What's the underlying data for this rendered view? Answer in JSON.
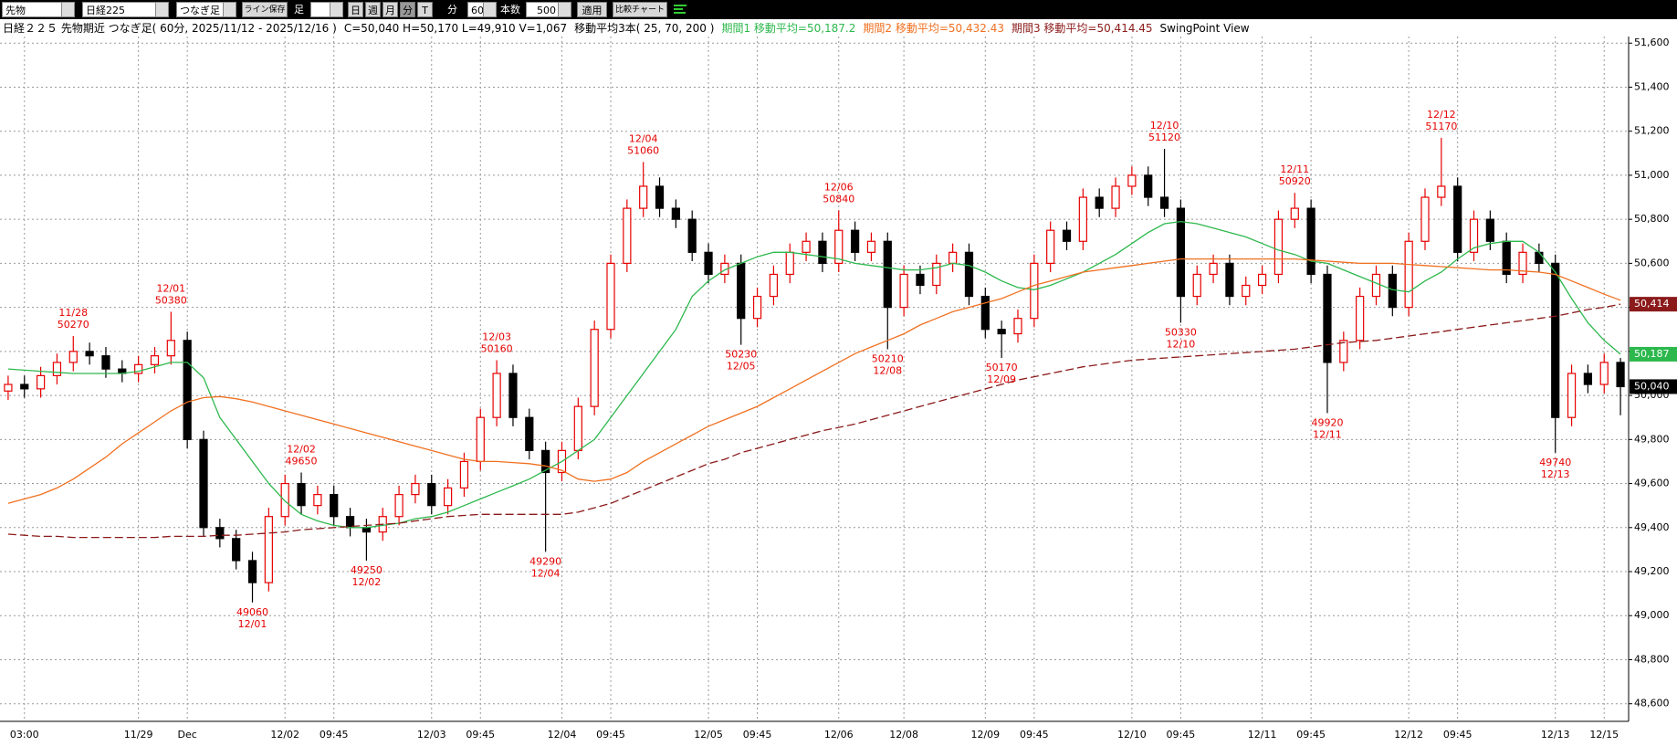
{
  "toolbar": {
    "market": "先物",
    "symbol": "日経225",
    "mode": "つなぎ足",
    "save": "ライン保存",
    "bar_label": "足",
    "periods": [
      "日",
      "週",
      "月",
      "分",
      "T"
    ],
    "unit_label": "分",
    "interval": "60",
    "count_label": "本数",
    "count": "500",
    "apply": "適用",
    "compare": "比較チャート"
  },
  "chart_data": {
    "type": "candlestick",
    "title": "日経２２５ 先物期近 つなぎ足( 60分, 2025/11/12 - 2025/12/16 )",
    "subtitle": "C=50,040 H=50,170 L=49,910 V=1,067",
    "ma_caption": "移動平均3本( 25, 70, 200 )",
    "view_label": "SwingPoint View",
    "grid": true,
    "ylim": [
      48520,
      51630
    ],
    "yticks": [
      {
        "value": 48600,
        "label": "48,600"
      },
      {
        "value": 48800,
        "label": "48,800"
      },
      {
        "value": 49000,
        "label": "49,000"
      },
      {
        "value": 49200,
        "label": "49,200"
      },
      {
        "value": 49400,
        "label": "49,400"
      },
      {
        "value": 49600,
        "label": "49,600"
      },
      {
        "value": 49800,
        "label": "49,800"
      },
      {
        "value": 50000,
        "label": "50,000"
      },
      {
        "value": 50200,
        "label": "50,200"
      },
      {
        "value": 50400,
        "label": "50,400"
      },
      {
        "value": 50600,
        "label": "50,600"
      },
      {
        "value": 50800,
        "label": "50,800"
      },
      {
        "value": 51000,
        "label": "51,000"
      },
      {
        "value": 51200,
        "label": "51,200"
      },
      {
        "value": 51400,
        "label": "51,400"
      },
      {
        "value": 51600,
        "label": "51,600"
      }
    ],
    "categories": [
      null,
      "03:00",
      null,
      null,
      null,
      null,
      null,
      null,
      "11/29",
      null,
      null,
      "Dec",
      null,
      null,
      null,
      null,
      null,
      "12/02",
      null,
      null,
      "09:45",
      null,
      null,
      null,
      null,
      null,
      "12/03",
      null,
      null,
      "09:45",
      null,
      null,
      null,
      null,
      "12/04",
      null,
      null,
      "09:45",
      null,
      null,
      null,
      null,
      null,
      "12/05",
      null,
      null,
      "09:45",
      null,
      null,
      null,
      null,
      "12/06",
      null,
      null,
      null,
      "12/08",
      null,
      null,
      null,
      null,
      "12/09",
      null,
      null,
      "09:45",
      null,
      null,
      null,
      null,
      null,
      "12/10",
      null,
      null,
      "09:45",
      null,
      null,
      null,
      null,
      "12/11",
      null,
      null,
      "09:45",
      null,
      null,
      null,
      null,
      null,
      "12/12",
      null,
      null,
      "09:45",
      null,
      null,
      null,
      null,
      null,
      "12/13",
      null,
      null,
      "12/15",
      null
    ],
    "ohlc": {
      "up_color": "#e60000",
      "down_color": "#000000",
      "last_label": "50,040",
      "open": [
        50020,
        50050,
        50030,
        50090,
        50150,
        50200,
        50180,
        50120,
        50100,
        50140,
        50180,
        50250,
        49800,
        49400,
        49350,
        49250,
        49150,
        49450,
        49600,
        49500,
        49550,
        49450,
        49400,
        49380,
        49450,
        49550,
        49600,
        49500,
        49580,
        49700,
        49900,
        50100,
        49900,
        49750,
        49650,
        49750,
        49950,
        50300,
        50600,
        50850,
        50950,
        50850,
        50800,
        50650,
        50550,
        50600,
        50350,
        50450,
        50550,
        50650,
        50700,
        50600,
        50750,
        50650,
        50700,
        50400,
        50550,
        50500,
        50600,
        50650,
        50450,
        50300,
        50280,
        50350,
        50600,
        50750,
        50700,
        50900,
        50850,
        50950,
        51000,
        50900,
        50850,
        50450,
        50550,
        50600,
        50450,
        50500,
        50550,
        50800,
        50850,
        50550,
        50150,
        50250,
        50450,
        50550,
        50400,
        50700,
        50900,
        50950,
        50650,
        50800,
        50700,
        50550,
        50650,
        50600,
        49900,
        50100,
        50050,
        50150
      ],
      "high": [
        50090,
        50090,
        50130,
        50190,
        50270,
        50240,
        50220,
        50160,
        50180,
        50220,
        50380,
        50290,
        49840,
        49440,
        49390,
        49290,
        49490,
        49640,
        49650,
        49590,
        49590,
        49490,
        49440,
        49490,
        49590,
        49640,
        49640,
        49620,
        49740,
        49940,
        50160,
        50140,
        49940,
        49790,
        49790,
        49990,
        50340,
        50640,
        50890,
        51060,
        50990,
        50890,
        50840,
        50690,
        50640,
        50640,
        50490,
        50590,
        50690,
        50740,
        50740,
        50840,
        50790,
        50740,
        50740,
        50590,
        50590,
        50640,
        50690,
        50690,
        50490,
        50340,
        50390,
        50640,
        50790,
        50790,
        50940,
        50940,
        50990,
        51040,
        51040,
        51120,
        50890,
        50590,
        50640,
        50640,
        50540,
        50590,
        50840,
        50920,
        50890,
        50590,
        50290,
        50490,
        50590,
        50590,
        50740,
        50940,
        51170,
        50990,
        50840,
        50840,
        50740,
        50690,
        50690,
        50640,
        50140,
        50140,
        50190,
        50170
      ],
      "low": [
        49980,
        49990,
        49990,
        50050,
        50110,
        50140,
        50080,
        50060,
        50060,
        50100,
        50140,
        49760,
        49360,
        49310,
        49210,
        49060,
        49110,
        49410,
        49460,
        49460,
        49410,
        49360,
        49250,
        49340,
        49410,
        49510,
        49460,
        49460,
        49540,
        49660,
        49860,
        49860,
        49710,
        49290,
        49610,
        49710,
        49910,
        50260,
        50560,
        50810,
        50810,
        50760,
        50610,
        50510,
        50510,
        50230,
        50310,
        50410,
        50510,
        50610,
        50560,
        50560,
        50610,
        50610,
        50210,
        50360,
        50460,
        50460,
        50560,
        50410,
        50260,
        50170,
        50240,
        50310,
        50560,
        50660,
        50660,
        50810,
        50810,
        50910,
        50860,
        50810,
        50330,
        50410,
        50510,
        50410,
        50410,
        50460,
        50510,
        50760,
        50510,
        49920,
        50110,
        50210,
        50410,
        50360,
        50360,
        50660,
        50860,
        50610,
        50610,
        50660,
        50510,
        50510,
        50560,
        49740,
        49860,
        50010,
        50010,
        49910
      ],
      "close": [
        50050,
        50030,
        50090,
        50150,
        50200,
        50180,
        50120,
        50100,
        50140,
        50180,
        50250,
        49800,
        49400,
        49350,
        49250,
        49150,
        49450,
        49600,
        49500,
        49550,
        49450,
        49400,
        49380,
        49450,
        49550,
        49600,
        49500,
        49580,
        49700,
        49900,
        50100,
        49900,
        49750,
        49650,
        49750,
        49950,
        50300,
        50600,
        50850,
        50950,
        50850,
        50800,
        50650,
        50550,
        50600,
        50350,
        50450,
        50550,
        50650,
        50700,
        50600,
        50750,
        50650,
        50700,
        50400,
        50550,
        50500,
        50600,
        50650,
        50450,
        50300,
        50280,
        50350,
        50600,
        50750,
        50700,
        50900,
        50850,
        50950,
        51000,
        50900,
        50850,
        50450,
        50550,
        50600,
        50450,
        50500,
        50550,
        50800,
        50850,
        50550,
        50150,
        50250,
        50450,
        50550,
        50400,
        50700,
        50900,
        50950,
        50650,
        50800,
        50700,
        50550,
        50650,
        50600,
        49900,
        50100,
        50050,
        50150,
        50040
      ]
    },
    "swing_color": "#e60000",
    "swing_high_dates": [
      null,
      null,
      null,
      null,
      "11/28",
      null,
      null,
      null,
      null,
      null,
      "12/01",
      null,
      null,
      null,
      null,
      null,
      null,
      null,
      "12/02",
      null,
      null,
      null,
      null,
      null,
      null,
      null,
      null,
      null,
      null,
      null,
      "12/03",
      null,
      null,
      null,
      null,
      null,
      null,
      null,
      null,
      "12/04",
      null,
      null,
      null,
      null,
      null,
      null,
      null,
      null,
      null,
      null,
      null,
      "12/06",
      null,
      null,
      null,
      null,
      null,
      null,
      null,
      null,
      null,
      null,
      null,
      null,
      null,
      null,
      null,
      null,
      null,
      null,
      null,
      "12/10",
      null,
      null,
      null,
      null,
      null,
      null,
      null,
      "12/11",
      null,
      null,
      null,
      null,
      null,
      null,
      null,
      null,
      "12/12",
      null,
      null,
      null,
      null,
      null,
      null,
      null,
      null,
      null,
      null,
      null
    ],
    "swing_low_dates": [
      null,
      null,
      null,
      null,
      null,
      null,
      null,
      null,
      null,
      null,
      null,
      null,
      null,
      null,
      null,
      "12/01",
      null,
      null,
      null,
      null,
      null,
      null,
      "12/02",
      null,
      null,
      null,
      null,
      null,
      null,
      null,
      null,
      null,
      null,
      "12/04",
      null,
      null,
      null,
      null,
      null,
      null,
      null,
      null,
      null,
      null,
      null,
      "12/05",
      null,
      null,
      null,
      null,
      null,
      null,
      null,
      null,
      "12/08",
      null,
      null,
      null,
      null,
      null,
      null,
      "12/09",
      null,
      null,
      null,
      null,
      null,
      null,
      null,
      null,
      null,
      null,
      "12/10",
      null,
      null,
      null,
      null,
      null,
      null,
      null,
      null,
      "12/11",
      null,
      null,
      null,
      null,
      null,
      null,
      null,
      null,
      null,
      null,
      null,
      null,
      null,
      "12/13",
      null,
      null,
      null,
      null
    ],
    "moving_averages": [
      {
        "name": "期間1 移動平均=50,187.2",
        "color": "#2db84d",
        "style": "solid",
        "last_label": "50,187",
        "values": [
          50120,
          50115,
          50110,
          50105,
          50100,
          50100,
          50100,
          50100,
          50110,
          50130,
          50150,
          50150,
          50080,
          49900,
          49800,
          49700,
          49600,
          49520,
          49460,
          49430,
          49410,
          49400,
          49400,
          49410,
          49420,
          49440,
          49450,
          49470,
          49500,
          49530,
          49560,
          49590,
          49620,
          49660,
          49700,
          49750,
          49800,
          49900,
          50000,
          50100,
          50200,
          50300,
          50450,
          50520,
          50570,
          50600,
          50630,
          50650,
          50650,
          50640,
          50630,
          50620,
          50600,
          50590,
          50580,
          50570,
          50570,
          50580,
          50600,
          50590,
          50560,
          50520,
          50490,
          50480,
          50500,
          50530,
          50560,
          50600,
          50640,
          50690,
          50740,
          50780,
          50790,
          50780,
          50760,
          50740,
          50720,
          50690,
          50660,
          50640,
          50610,
          50600,
          50570,
          50540,
          50510,
          50480,
          50470,
          50520,
          50560,
          50620,
          50670,
          50690,
          50700,
          50700,
          50650,
          50560,
          50440,
          50330,
          50250,
          50187.2
        ]
      },
      {
        "name": "期間2 移動平均=50,432.43",
        "color": "#f07020",
        "style": "solid",
        "values": [
          49510,
          49530,
          49550,
          49580,
          49620,
          49670,
          49720,
          49780,
          49830,
          49880,
          49930,
          49970,
          49990,
          49995,
          49985,
          49970,
          49950,
          49930,
          49910,
          49890,
          49870,
          49850,
          49830,
          49810,
          49790,
          49770,
          49750,
          49730,
          49710,
          49700,
          49700,
          49695,
          49690,
          49680,
          49660,
          49620,
          49610,
          49620,
          49650,
          49700,
          49740,
          49780,
          49820,
          49860,
          49890,
          49920,
          49950,
          49990,
          50030,
          50070,
          50110,
          50150,
          50190,
          50220,
          50250,
          50280,
          50320,
          50350,
          50380,
          50400,
          50420,
          50440,
          50470,
          50500,
          50520,
          50540,
          50560,
          50570,
          50580,
          50590,
          50600,
          50610,
          50620,
          50620,
          50620,
          50620,
          50620,
          50620,
          50620,
          50620,
          50615,
          50610,
          50605,
          50600,
          50600,
          50600,
          50595,
          50590,
          50585,
          50580,
          50575,
          50570,
          50570,
          50565,
          50560,
          50550,
          50520,
          50490,
          50460,
          50432.43
        ]
      },
      {
        "name": "期間3 移動平均=50,414.45",
        "color": "#8b1a1a",
        "style": "dashed",
        "last_label": "50,414",
        "values": [
          49370,
          49365,
          49360,
          49360,
          49355,
          49355,
          49355,
          49355,
          49355,
          49355,
          49360,
          49360,
          49360,
          49365,
          49365,
          49370,
          49375,
          49380,
          49390,
          49395,
          49400,
          49405,
          49410,
          49415,
          49420,
          49430,
          49440,
          49450,
          49455,
          49460,
          49460,
          49460,
          49460,
          49460,
          49460,
          49470,
          49490,
          49510,
          49540,
          49570,
          49600,
          49630,
          49660,
          49690,
          49710,
          49740,
          49760,
          49780,
          49800,
          49820,
          49840,
          49855,
          49870,
          49890,
          49910,
          49930,
          49950,
          49970,
          49990,
          50010,
          50030,
          50050,
          50070,
          50085,
          50100,
          50115,
          50130,
          50140,
          50150,
          50160,
          50165,
          50170,
          50175,
          50180,
          50185,
          50190,
          50195,
          50200,
          50205,
          50210,
          50220,
          50230,
          50240,
          50245,
          50250,
          50260,
          50270,
          50280,
          50290,
          50300,
          50310,
          50320,
          50330,
          50340,
          50350,
          50360,
          50375,
          50390,
          50400,
          50414.45
        ]
      }
    ]
  }
}
